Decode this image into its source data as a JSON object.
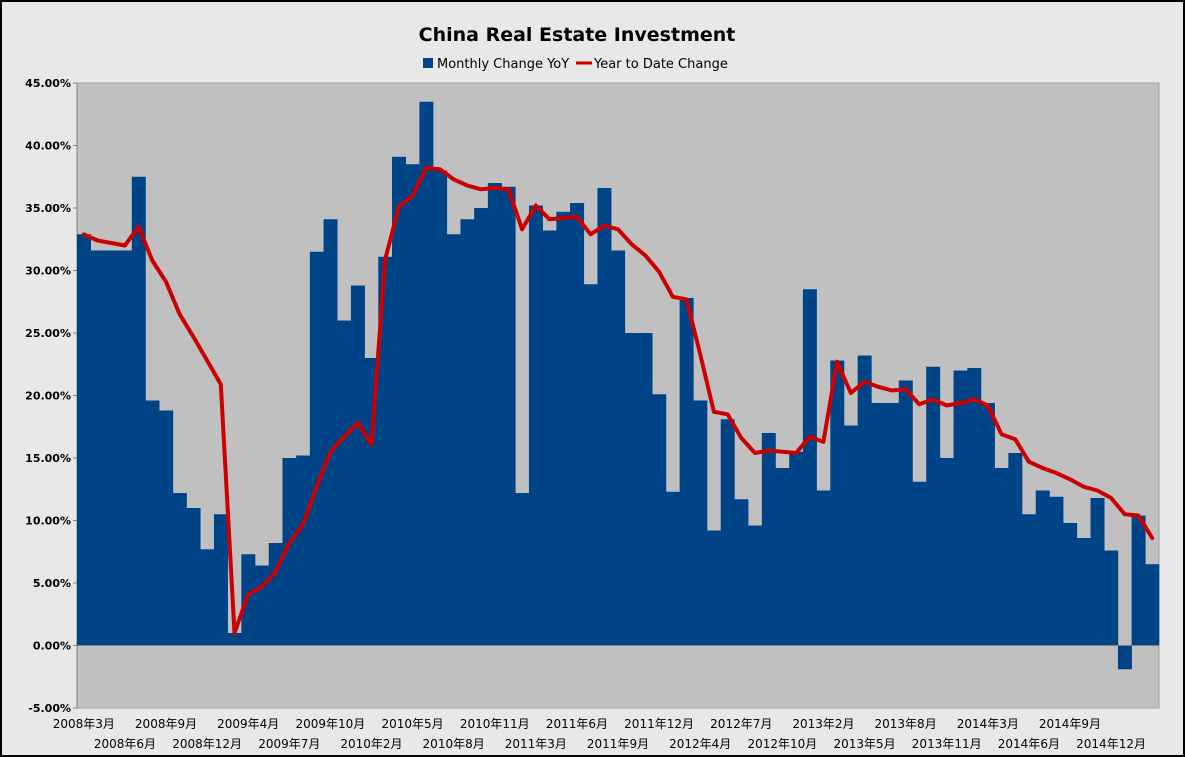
{
  "chart_data": {
    "type": "bar+line",
    "title": "China Real Estate Investment",
    "xlabel": "",
    "ylabel": "",
    "ylim": [
      -0.05,
      0.45
    ],
    "y_ticks": [
      -0.05,
      0,
      0.05,
      0.1,
      0.15,
      0.2,
      0.25,
      0.3,
      0.35,
      0.4,
      0.45
    ],
    "y_tick_labels": [
      "-5.00%",
      "0.00%",
      "5.00%",
      "10.00%",
      "15.00%",
      "20.00%",
      "25.00%",
      "30.00%",
      "35.00%",
      "40.00%",
      "45.00%"
    ],
    "grid": false,
    "legend": "top-center",
    "background": "#c0c0c0",
    "x_ticks_row1": [
      {
        "index": 0,
        "label": "2008年3月"
      },
      {
        "index": 6,
        "label": "2008年9月"
      },
      {
        "index": 12,
        "label": "2009年4月"
      },
      {
        "index": 18,
        "label": "2009年10月"
      },
      {
        "index": 24,
        "label": "2010年5月"
      },
      {
        "index": 30,
        "label": "2010年11月"
      },
      {
        "index": 36,
        "label": "2011年6月"
      },
      {
        "index": 42,
        "label": "2011年12月"
      },
      {
        "index": 48,
        "label": "2012年7月"
      },
      {
        "index": 54,
        "label": "2013年2月"
      },
      {
        "index": 60,
        "label": "2013年8月"
      },
      {
        "index": 66,
        "label": "2014年3月"
      },
      {
        "index": 72,
        "label": "2014年9月"
      }
    ],
    "x_ticks_row2": [
      {
        "index": 3,
        "label": "2008年6月"
      },
      {
        "index": 9,
        "label": "2008年12月"
      },
      {
        "index": 15,
        "label": "2009年7月"
      },
      {
        "index": 21,
        "label": "2010年2月"
      },
      {
        "index": 27,
        "label": "2010年8月"
      },
      {
        "index": 33,
        "label": "2011年3月"
      },
      {
        "index": 39,
        "label": "2011年9月"
      },
      {
        "index": 45,
        "label": "2012年4月"
      },
      {
        "index": 51,
        "label": "2012年10月"
      },
      {
        "index": 57,
        "label": "2013年5月"
      },
      {
        "index": 63,
        "label": "2013年11月"
      },
      {
        "index": 69,
        "label": "2014年6月"
      },
      {
        "index": 75,
        "label": "2014年12月"
      }
    ],
    "series": [
      {
        "name": "Monthly Change YoY",
        "type": "bar",
        "color": "#004488",
        "values": [
          0.329,
          0.316,
          0.316,
          0.316,
          0.375,
          0.196,
          0.188,
          0.122,
          0.11,
          0.077,
          0.105,
          0.01,
          0.073,
          0.064,
          0.082,
          0.15,
          0.152,
          0.315,
          0.341,
          0.26,
          0.288,
          0.23,
          0.311,
          0.391,
          0.385,
          0.435,
          0.38,
          0.329,
          0.341,
          0.35,
          0.37,
          0.367,
          0.122,
          0.352,
          0.332,
          0.347,
          0.354,
          0.289,
          0.366,
          0.316,
          0.25,
          0.25,
          0.201,
          0.123,
          0.278,
          0.196,
          0.092,
          0.181,
          0.117,
          0.096,
          0.17,
          0.142,
          0.155,
          0.285,
          0.124,
          0.228,
          0.176,
          0.232,
          0.194,
          0.194,
          0.212,
          0.131,
          0.223,
          0.15,
          0.22,
          0.222,
          0.194,
          0.142,
          0.154,
          0.105,
          0.124,
          0.119,
          0.098,
          0.086,
          0.118,
          0.076,
          -0.019,
          0.104,
          0.065
        ]
      },
      {
        "name": "Year to Date Change",
        "type": "line",
        "color": "#cc0000",
        "values": [
          0.329,
          0.324,
          0.322,
          0.32,
          0.335,
          0.308,
          0.291,
          0.265,
          0.247,
          0.228,
          0.209,
          0.01,
          0.041,
          0.047,
          0.059,
          0.082,
          0.097,
          0.127,
          0.155,
          0.167,
          0.178,
          0.161,
          0.309,
          0.351,
          0.36,
          0.382,
          0.381,
          0.373,
          0.368,
          0.365,
          0.366,
          0.365,
          0.333,
          0.352,
          0.341,
          0.342,
          0.343,
          0.329,
          0.336,
          0.333,
          0.321,
          0.312,
          0.299,
          0.279,
          0.277,
          0.233,
          0.187,
          0.185,
          0.166,
          0.154,
          0.156,
          0.155,
          0.154,
          0.167,
          0.163,
          0.227,
          0.202,
          0.211,
          0.207,
          0.204,
          0.205,
          0.193,
          0.197,
          0.192,
          0.194,
          0.197,
          0.192,
          0.169,
          0.165,
          0.147,
          0.142,
          0.138,
          0.133,
          0.127,
          0.124,
          0.118,
          0.105,
          0.104,
          0.086
        ]
      }
    ]
  }
}
